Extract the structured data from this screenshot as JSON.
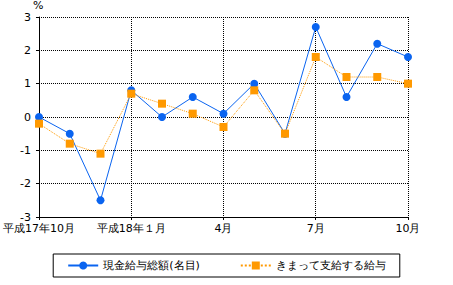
{
  "chart_data": {
    "type": "line",
    "y_label": "%",
    "categories": [
      "平成17年10月",
      null,
      null,
      "平成18年１月",
      null,
      null,
      "4月",
      null,
      null,
      "7月",
      null,
      null,
      "10月"
    ],
    "series": [
      {
        "name": "現金給与総額(名目)",
        "color": "#0a64f0",
        "marker": "circle",
        "line_style": "solid",
        "values": [
          0.0,
          -0.5,
          -2.5,
          0.8,
          0.0,
          0.6,
          0.1,
          1.0,
          -0.5,
          2.7,
          0.6,
          2.2,
          1.8
        ]
      },
      {
        "name": "きまって支給する給与",
        "color": "#ff9900",
        "marker": "square",
        "line_style": "dotted",
        "values": [
          -0.2,
          -0.8,
          -1.1,
          0.7,
          0.4,
          0.1,
          -0.3,
          0.8,
          -0.5,
          1.8,
          1.2,
          1.2,
          1.0
        ]
      }
    ],
    "ylim": [
      -3,
      3
    ],
    "yticks": [
      -3,
      -2,
      -1,
      0,
      1,
      2,
      3
    ],
    "grid": true,
    "legend": "bottom"
  }
}
